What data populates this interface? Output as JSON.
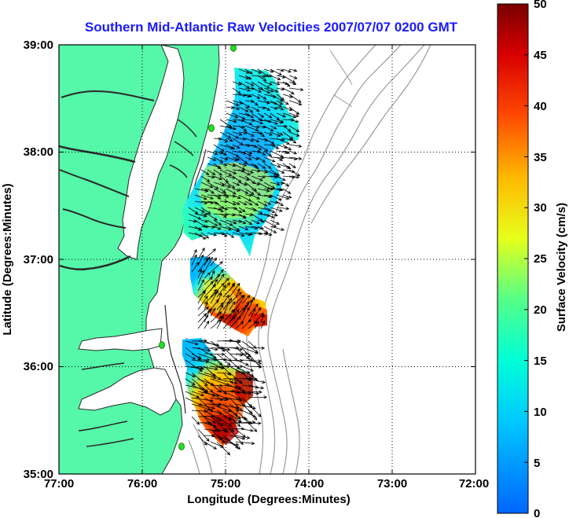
{
  "title": "Southern Mid-Atlantic Raw Velocities 2007/07/07 0200 GMT",
  "x_axis_label": "Longitude (Degrees:Minutes)",
  "y_axis_label": "Latitude (Degrees:Minutes)",
  "colorbar_label": "Surface Velocity (cm/s)",
  "x_ticks": [
    "77:00",
    "76:00",
    "75:00",
    "74:00",
    "73:00",
    "72:00"
  ],
  "y_ticks": [
    "39:00",
    "38:00",
    "37:00",
    "36:00",
    "35:00"
  ],
  "colorbar_ticks": [
    "50",
    "45",
    "40",
    "35",
    "30",
    "25",
    "20",
    "15",
    "10",
    "5",
    "0"
  ],
  "chart_data": {
    "type": "heatmap",
    "title": "Southern Mid-Atlantic Raw Velocities 2007/07/07 0200 GMT",
    "xlabel": "Longitude (Degrees:Minutes)",
    "ylabel": "Latitude (Degrees:Minutes)",
    "xlim": [
      -77.0,
      -72.0
    ],
    "ylim": [
      35.0,
      39.0
    ],
    "x_ticks": [
      -77,
      -76,
      -75,
      -74,
      -73,
      -72
    ],
    "y_ticks": [
      39,
      38,
      37,
      36,
      35
    ],
    "grid": true,
    "colorbar": {
      "label": "Surface Velocity (cm/s)",
      "range": [
        0,
        50
      ],
      "ticks": [
        0,
        5,
        10,
        15,
        20,
        25,
        30,
        35,
        40,
        45,
        50
      ],
      "colormap": "jet"
    },
    "colors": {
      "land": "#55f7a8",
      "coast": "#2a2a2a",
      "bathymetry": "#9a9a9a",
      "arrows": "#000000",
      "stations": "#22dd22"
    }
  }
}
